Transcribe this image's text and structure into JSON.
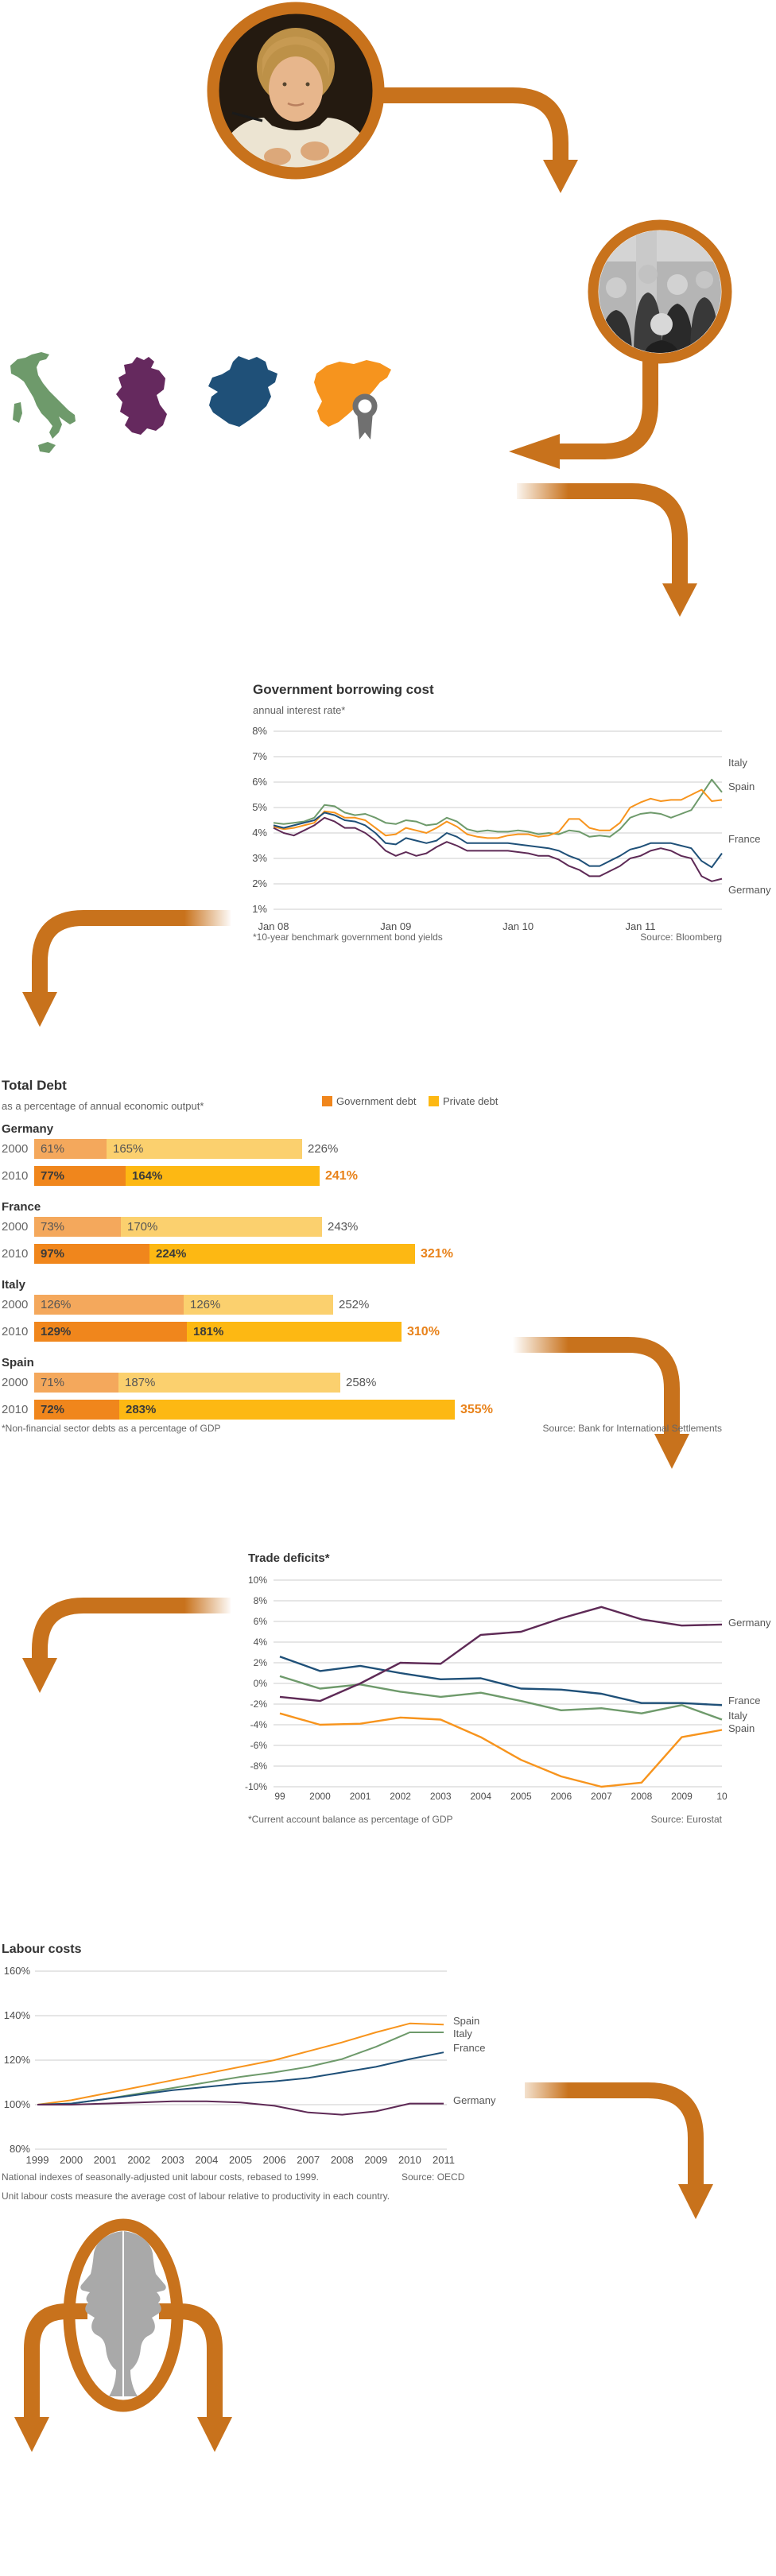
{
  "colors": {
    "arrow": "#c8721c",
    "grid": "#cccccc",
    "title": "#333333",
    "axis": "#4d4d4d",
    "footnote": "#666666",
    "medal": "#707070",
    "head_silhouette": "#a9a9a9",
    "debt_gov_2000": "#f4a85c",
    "debt_priv_2000": "#fbd06e",
    "debt_gov_2010": "#f0861c",
    "debt_priv_2010": "#fdb813",
    "debt_total_2010": "#e8821a"
  },
  "maps": {
    "countries": [
      {
        "name": "Italy",
        "color": "#6e9a6b"
      },
      {
        "name": "Germany",
        "color": "#65295e"
      },
      {
        "name": "France",
        "color": "#1f5078"
      },
      {
        "name": "Spain",
        "color": "#f6941e",
        "badge": "medal-icon"
      }
    ]
  },
  "chart_data": [
    {
      "id": "borrowing",
      "type": "line",
      "title": "Government borrowing cost",
      "subtitle": "annual interest rate*",
      "footnote": "*10-year benchmark government bond yields",
      "source": "Source: Bloomberg",
      "ylim": [
        1,
        8
      ],
      "x_unit": "months from Jan 2008 to Sep 2011",
      "grid": true,
      "legend_position": "right",
      "yticks": [
        {
          "label": "8%",
          "v": 8
        },
        {
          "label": "7%",
          "v": 7
        },
        {
          "label": "6%",
          "v": 6
        },
        {
          "label": "5%",
          "v": 5
        },
        {
          "label": "4%",
          "v": 4
        },
        {
          "label": "3%",
          "v": 3
        },
        {
          "label": "2%",
          "v": 2
        },
        {
          "label": "1%",
          "v": 1
        }
      ],
      "xticks": [
        {
          "label": "Jan 08",
          "i": 0
        },
        {
          "label": "Jan 09",
          "i": 12
        },
        {
          "label": "Jan 10",
          "i": 24
        },
        {
          "label": "Jan 11",
          "i": 36
        }
      ],
      "series": [
        {
          "name": "Italy",
          "color": "#6e9a6b",
          "values": [
            4.4,
            4.35,
            4.4,
            4.45,
            4.6,
            5.1,
            5.05,
            4.8,
            4.7,
            4.75,
            4.6,
            4.4,
            4.35,
            4.5,
            4.45,
            4.3,
            4.35,
            4.6,
            4.45,
            4.15,
            4.05,
            4.1,
            4.05,
            4.05,
            4.1,
            4.05,
            3.95,
            4.0,
            3.95,
            4.1,
            4.05,
            3.85,
            3.9,
            3.85,
            4.15,
            4.6,
            4.75,
            4.8,
            4.75,
            4.6,
            4.75,
            4.9,
            5.5,
            6.1,
            5.6
          ]
        },
        {
          "name": "Spain",
          "color": "#f7941d",
          "values": [
            4.25,
            4.15,
            4.2,
            4.3,
            4.4,
            4.85,
            4.8,
            4.6,
            4.6,
            4.5,
            4.2,
            3.9,
            3.95,
            4.2,
            4.1,
            4.0,
            4.2,
            4.45,
            4.25,
            3.95,
            3.85,
            3.8,
            3.8,
            3.9,
            3.95,
            3.95,
            3.85,
            3.9,
            4.05,
            4.55,
            4.55,
            4.2,
            4.1,
            4.1,
            4.4,
            5.0,
            5.2,
            5.35,
            5.25,
            5.3,
            5.3,
            5.5,
            5.7,
            5.25,
            5.3
          ]
        },
        {
          "name": "France",
          "color": "#1f5078",
          "values": [
            4.3,
            4.2,
            4.3,
            4.4,
            4.5,
            4.8,
            4.7,
            4.5,
            4.45,
            4.3,
            4.0,
            3.6,
            3.55,
            3.8,
            3.7,
            3.6,
            3.7,
            4.0,
            3.85,
            3.6,
            3.6,
            3.6,
            3.6,
            3.6,
            3.55,
            3.5,
            3.45,
            3.4,
            3.3,
            3.1,
            2.95,
            2.7,
            2.7,
            2.9,
            3.1,
            3.35,
            3.45,
            3.6,
            3.6,
            3.6,
            3.5,
            3.4,
            2.9,
            2.65,
            3.2
          ]
        },
        {
          "name": "Germany",
          "color": "#5e2a56",
          "values": [
            4.2,
            4.0,
            3.9,
            4.1,
            4.3,
            4.6,
            4.45,
            4.2,
            4.2,
            4.0,
            3.7,
            3.3,
            3.1,
            3.25,
            3.1,
            3.2,
            3.45,
            3.65,
            3.5,
            3.3,
            3.3,
            3.3,
            3.3,
            3.3,
            3.25,
            3.2,
            3.1,
            3.1,
            2.95,
            2.7,
            2.55,
            2.3,
            2.3,
            2.5,
            2.7,
            3.0,
            3.1,
            3.3,
            3.4,
            3.3,
            3.1,
            3.0,
            2.3,
            2.1,
            2.2
          ]
        }
      ]
    },
    {
      "id": "total_debt",
      "type": "bar",
      "title": "Total Debt",
      "subtitle": "as a percentage of annual economic output*",
      "footnote": "*Non-financial sector debts as a percentage of GDP",
      "source": "Source: Bank for International Settlements",
      "unit": "% of GDP",
      "legend": [
        {
          "label": "Government debt",
          "color": "#f0861c"
        },
        {
          "label": "Private debt",
          "color": "#fdb813"
        }
      ],
      "countries": [
        {
          "name": "Germany",
          "rows": [
            {
              "year": "2000",
              "government": 61,
              "private": 165,
              "total": 226
            },
            {
              "year": "2010",
              "government": 77,
              "private": 164,
              "total": 241
            }
          ]
        },
        {
          "name": "France",
          "rows": [
            {
              "year": "2000",
              "government": 73,
              "private": 170,
              "total": 243
            },
            {
              "year": "2010",
              "government": 97,
              "private": 224,
              "total": 321
            }
          ]
        },
        {
          "name": "Italy",
          "rows": [
            {
              "year": "2000",
              "government": 126,
              "private": 126,
              "total": 252
            },
            {
              "year": "2010",
              "government": 129,
              "private": 181,
              "total": 310
            }
          ]
        },
        {
          "name": "Spain",
          "rows": [
            {
              "year": "2000",
              "government": 71,
              "private": 187,
              "total": 258
            },
            {
              "year": "2010",
              "government": 72,
              "private": 283,
              "total": 355
            }
          ]
        }
      ]
    },
    {
      "id": "trade",
      "type": "line",
      "title": "Trade deficits*",
      "footnote": "*Current account balance as percentage of GDP",
      "source": "Source: Eurostat",
      "ylim": [
        -10,
        10
      ],
      "x_unit": "years 1999-2010",
      "grid": true,
      "legend_position": "right",
      "yticks": [
        {
          "label": "10%",
          "v": 10
        },
        {
          "label": "8%",
          "v": 8
        },
        {
          "label": "6%",
          "v": 6
        },
        {
          "label": "4%",
          "v": 4
        },
        {
          "label": "2%",
          "v": 2
        },
        {
          "label": "0%",
          "v": 0
        },
        {
          "label": "-2%",
          "v": -2
        },
        {
          "label": "-4%",
          "v": -4
        },
        {
          "label": "-6%",
          "v": -6
        },
        {
          "label": "-8%",
          "v": -8
        },
        {
          "label": "-10%",
          "v": -10
        }
      ],
      "xticks": [
        {
          "label": "99",
          "i": 0
        },
        {
          "label": "2000",
          "i": 1
        },
        {
          "label": "2001",
          "i": 2
        },
        {
          "label": "2002",
          "i": 3
        },
        {
          "label": "2003",
          "i": 4
        },
        {
          "label": "2004",
          "i": 5
        },
        {
          "label": "2005",
          "i": 6
        },
        {
          "label": "2006",
          "i": 7
        },
        {
          "label": "2007",
          "i": 8
        },
        {
          "label": "2008",
          "i": 9
        },
        {
          "label": "2009",
          "i": 10
        },
        {
          "label": "10",
          "i": 11
        }
      ],
      "series": [
        {
          "name": "Spain",
          "color": "#f7941d",
          "values": [
            -2.9,
            -4.0,
            -3.9,
            -3.3,
            -3.5,
            -5.2,
            -7.4,
            -9.0,
            -10.0,
            -9.6,
            -5.2,
            -4.5
          ]
        },
        {
          "name": "Italy",
          "color": "#6e9a6b",
          "values": [
            0.7,
            -0.5,
            -0.1,
            -0.8,
            -1.3,
            -0.9,
            -1.7,
            -2.6,
            -2.4,
            -2.9,
            -2.1,
            -3.5
          ]
        },
        {
          "name": "France",
          "color": "#1f5078",
          "values": [
            2.6,
            1.2,
            1.7,
            1.0,
            0.4,
            0.5,
            -0.5,
            -0.6,
            -1.0,
            -1.9,
            -1.9,
            -2.1
          ]
        },
        {
          "name": "Germany",
          "color": "#5e2a56",
          "values": [
            -1.3,
            -1.7,
            0.0,
            2.0,
            1.9,
            4.7,
            5.0,
            6.3,
            7.4,
            6.2,
            5.6,
            5.7
          ]
        }
      ]
    },
    {
      "id": "labour",
      "type": "line",
      "title": "Labour costs",
      "footnote": "National indexes of seasonally-adjusted unit labour costs, rebased to 1999.",
      "footnote2": "Unit labour costs measure the average cost of labour relative to productivity in each country.",
      "source": "Source: OECD",
      "ylim": [
        80,
        160
      ],
      "x_unit": "years 1999-2011",
      "grid": true,
      "legend_position": "right",
      "yticks": [
        {
          "label": "160%",
          "v": 160
        },
        {
          "label": "140%",
          "v": 140
        },
        {
          "label": "120%",
          "v": 120
        },
        {
          "label": "100%",
          "v": 100
        },
        {
          "label": "80%",
          "v": 80
        }
      ],
      "xticks": [
        {
          "label": "1999",
          "i": 0
        },
        {
          "label": "2000",
          "i": 1
        },
        {
          "label": "2001",
          "i": 2
        },
        {
          "label": "2002",
          "i": 3
        },
        {
          "label": "2003",
          "i": 4
        },
        {
          "label": "2004",
          "i": 5
        },
        {
          "label": "2005",
          "i": 6
        },
        {
          "label": "2006",
          "i": 7
        },
        {
          "label": "2007",
          "i": 8
        },
        {
          "label": "2008",
          "i": 9
        },
        {
          "label": "2009",
          "i": 10
        },
        {
          "label": "2010",
          "i": 11
        },
        {
          "label": "2011",
          "i": 12
        }
      ],
      "series": [
        {
          "name": "Spain",
          "color": "#f7941d",
          "values": [
            100,
            102,
            105,
            108,
            111,
            114,
            117,
            120,
            124,
            128,
            132.5,
            136.5,
            136
          ]
        },
        {
          "name": "Italy",
          "color": "#6e9a6b",
          "values": [
            100,
            100.5,
            102.5,
            105,
            107.5,
            110,
            112.5,
            114.5,
            117,
            120.5,
            126,
            132.5,
            132.5
          ]
        },
        {
          "name": "France",
          "color": "#1f5078",
          "values": [
            100,
            100.5,
            102.5,
            104.5,
            106.5,
            108,
            109.5,
            110.5,
            112,
            114.5,
            117,
            120.5,
            123.5
          ]
        },
        {
          "name": "Germany",
          "color": "#5e2a56",
          "values": [
            100,
            100,
            100.5,
            101,
            101.5,
            101.5,
            101,
            99.5,
            96.5,
            95.5,
            97,
            100.5,
            100.5
          ]
        }
      ]
    }
  ]
}
